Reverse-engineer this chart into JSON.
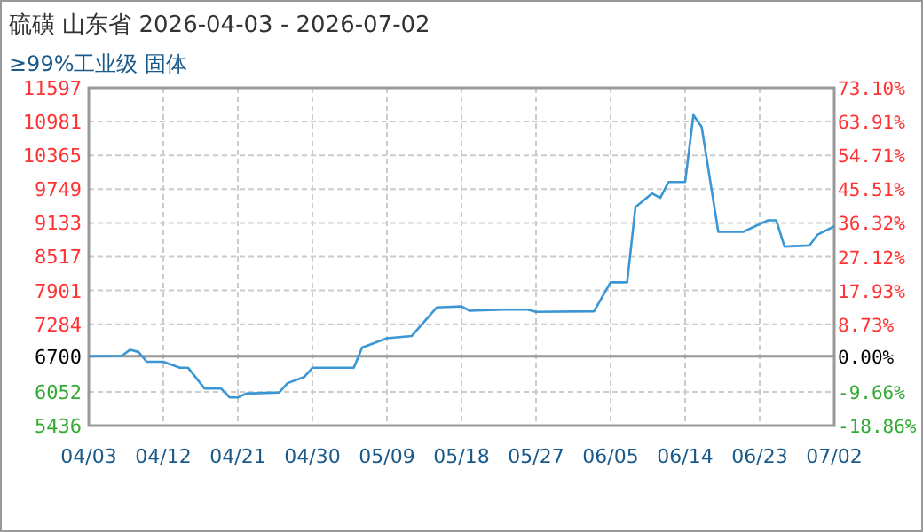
{
  "chart_data": {
    "type": "line",
    "title": "硫磺 山东省 2026-04-03 - 2026-07-02",
    "subtitle": "≥99%工业级 固体",
    "grid": true,
    "x": [
      "2026-04-03",
      "2026-04-07",
      "2026-04-08",
      "2026-04-09",
      "2026-04-10",
      "2026-04-12",
      "2026-04-14",
      "2026-04-15",
      "2026-04-17",
      "2026-04-19",
      "2026-04-20",
      "2026-04-21",
      "2026-04-22",
      "2026-04-26",
      "2026-04-27",
      "2026-04-29",
      "2026-04-30",
      "2026-05-05",
      "2026-05-06",
      "2026-05-09",
      "2026-05-12",
      "2026-05-15",
      "2026-05-18",
      "2026-05-19",
      "2026-05-23",
      "2026-05-26",
      "2026-05-27",
      "2026-06-03",
      "2026-06-05",
      "2026-06-07",
      "2026-06-08",
      "2026-06-10",
      "2026-06-11",
      "2026-06-12",
      "2026-06-14",
      "2026-06-15",
      "2026-06-16",
      "2026-06-18",
      "2026-06-21",
      "2026-06-24",
      "2026-06-25",
      "2026-06-26",
      "2026-06-29",
      "2026-06-30",
      "2026-07-02"
    ],
    "series": [
      {
        "color": "#3a96d4",
        "values": [
          6700,
          6710,
          6820,
          6780,
          6600,
          6600,
          6490,
          6490,
          6110,
          6110,
          5950,
          5950,
          6020,
          6040,
          6210,
          6320,
          6490,
          6490,
          6860,
          7030,
          7070,
          7590,
          7610,
          7530,
          7550,
          7550,
          7510,
          7520,
          8050,
          8050,
          9420,
          9670,
          9590,
          9880,
          9880,
          11100,
          10880,
          8970,
          8970,
          9180,
          9180,
          8700,
          8720,
          8920,
          9070
        ]
      }
    ],
    "xlim": [
      "2026-04-03",
      "2026-07-02"
    ],
    "xticks": [
      {
        "value": "2026-04-03",
        "label": "04/03"
      },
      {
        "value": "2026-04-12",
        "label": "04/12"
      },
      {
        "value": "2026-04-21",
        "label": "04/21"
      },
      {
        "value": "2026-04-30",
        "label": "04/30"
      },
      {
        "value": "2026-05-09",
        "label": "05/09"
      },
      {
        "value": "2026-05-18",
        "label": "05/18"
      },
      {
        "value": "2026-05-27",
        "label": "05/27"
      },
      {
        "value": "2026-06-05",
        "label": "06/05"
      },
      {
        "value": "2026-06-14",
        "label": "06/14"
      },
      {
        "value": "2026-06-23",
        "label": "06/23"
      },
      {
        "value": "2026-07-02",
        "label": "07/02"
      }
    ],
    "ylim": [
      5436,
      11597
    ],
    "yticks": [
      5436,
      6052,
      6700,
      7284,
      7901,
      8517,
      9133,
      9749,
      10365,
      10981,
      11597
    ],
    "y2lim": [
      -18.86,
      73.1
    ],
    "y2ticks": [
      {
        "value": -18.86,
        "label": "-18.86%"
      },
      {
        "value": -9.66,
        "label": "-9.66%"
      },
      {
        "value": 0,
        "label": "0.00%"
      },
      {
        "value": 8.73,
        "label": "8.73%"
      },
      {
        "value": 17.93,
        "label": "17.93%"
      },
      {
        "value": 27.12,
        "label": "27.12%"
      },
      {
        "value": 36.32,
        "label": "36.32%"
      },
      {
        "value": 45.51,
        "label": "45.51%"
      },
      {
        "value": 54.71,
        "label": "54.71%"
      },
      {
        "value": 63.91,
        "label": "63.91%"
      },
      {
        "value": 73.1,
        "label": "73.10%"
      }
    ],
    "ref_lines": [
      {
        "axis": "y",
        "value": 6700,
        "color": "#999999"
      }
    ]
  }
}
